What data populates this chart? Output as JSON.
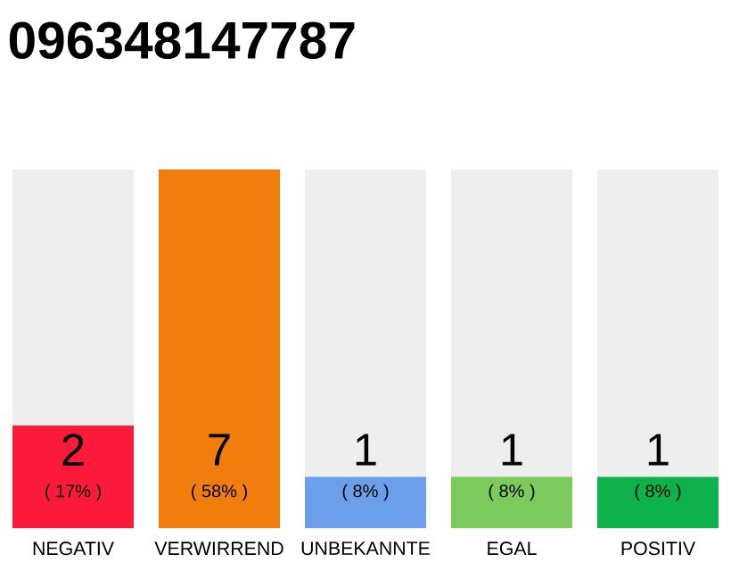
{
  "chart_data": {
    "type": "bar",
    "title": "096348147787",
    "categories": [
      "NEGATIV",
      "VERWIRREND",
      "UNBEKANNTE",
      "EGAL",
      "POSITIV"
    ],
    "values": [
      2,
      7,
      1,
      1,
      1
    ],
    "colors": [
      "#fc1a3b",
      "#f07d0c",
      "#6b9fea",
      "#7cc95c",
      "#0db24a"
    ],
    "ylim": [
      0,
      7
    ],
    "tick_labels": "x",
    "data_labels": true,
    "annotations": [
      "( 17% )",
      "( 58% )",
      "( 8% )",
      "( 8% )",
      "( 8% )"
    ]
  }
}
